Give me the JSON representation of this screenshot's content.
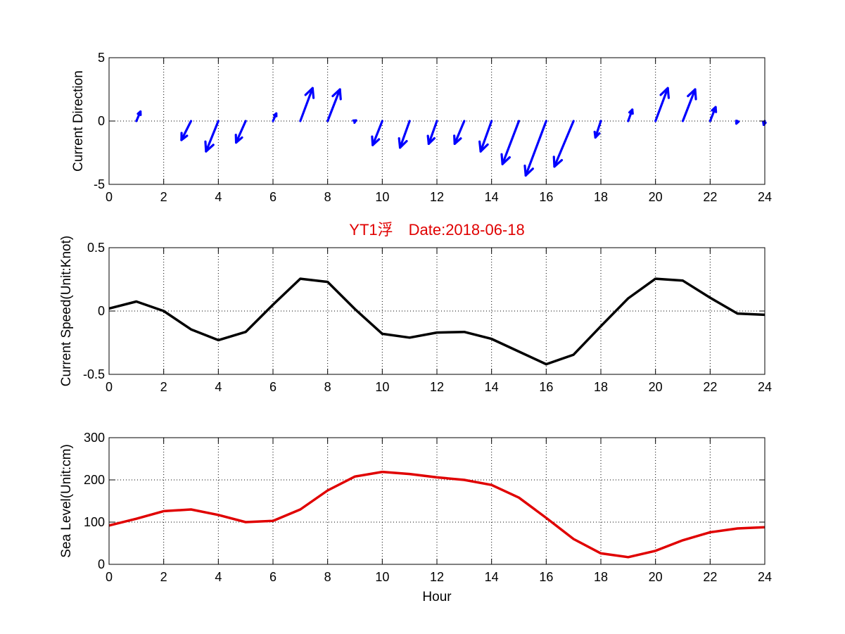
{
  "chart_data": [
    {
      "type": "quiver",
      "ylabel": "Current Direction",
      "xlim": [
        0,
        24
      ],
      "ylim": [
        -5,
        5
      ],
      "xticks": [
        0,
        2,
        4,
        6,
        8,
        10,
        12,
        14,
        16,
        18,
        20,
        22,
        24
      ],
      "yticks": [
        -5,
        0,
        5
      ],
      "grid": true,
      "color": "#0000ff",
      "x": [
        1,
        2,
        3,
        4,
        5,
        6,
        7,
        8,
        9,
        10,
        11,
        12,
        13,
        14,
        15,
        16,
        17,
        18,
        19,
        20,
        21,
        22,
        23,
        24
      ],
      "u": [
        0.15,
        0,
        -0.35,
        -0.45,
        -0.35,
        0.12,
        0.45,
        0.45,
        0.04,
        -0.35,
        -0.35,
        -0.3,
        -0.35,
        -0.4,
        -0.6,
        -0.75,
        -0.7,
        -0.2,
        0.15,
        0.45,
        0.45,
        0.2,
        -0.04,
        -0.04
      ],
      "v": [
        0.75,
        0,
        -1.5,
        -2.4,
        -1.7,
        0.6,
        2.6,
        2.5,
        0.05,
        -1.9,
        -2.1,
        -1.8,
        -1.8,
        -2.4,
        -3.4,
        -4.3,
        -3.6,
        -1.3,
        0.9,
        2.6,
        2.5,
        1.1,
        -0.2,
        -0.3
      ]
    },
    {
      "type": "line",
      "title": "YT1浮　Date:2018-06-18",
      "ylabel": "Current Speed(Unit:Knot)",
      "xlim": [
        0,
        24
      ],
      "ylim": [
        -0.5,
        0.5
      ],
      "xticks": [
        0,
        2,
        4,
        6,
        8,
        10,
        12,
        14,
        16,
        18,
        20,
        22,
        24
      ],
      "yticks": [
        -0.5,
        0,
        0.5
      ],
      "ytick_labels": [
        "-0.5",
        "0",
        "0.5"
      ],
      "grid": true,
      "color": "#000000",
      "x": [
        0,
        1,
        2,
        3,
        4,
        5,
        6,
        7,
        8,
        9,
        10,
        11,
        12,
        13,
        14,
        15,
        16,
        17,
        18,
        19,
        20,
        21,
        22,
        23,
        24
      ],
      "y": [
        0.02,
        0.075,
        0.0,
        -0.145,
        -0.23,
        -0.165,
        0.05,
        0.255,
        0.23,
        0.015,
        -0.18,
        -0.21,
        -0.17,
        -0.165,
        -0.22,
        -0.32,
        -0.42,
        -0.345,
        -0.12,
        0.1,
        0.255,
        0.24,
        0.105,
        -0.02,
        -0.03
      ]
    },
    {
      "type": "line",
      "ylabel": "Sea Level(Unit:cm)",
      "xlabel": "Hour",
      "xlim": [
        0,
        24
      ],
      "ylim": [
        0,
        300
      ],
      "xticks": [
        0,
        2,
        4,
        6,
        8,
        10,
        12,
        14,
        16,
        18,
        20,
        22,
        24
      ],
      "yticks": [
        0,
        100,
        200,
        300
      ],
      "grid": true,
      "color": "#e00000",
      "x": [
        0,
        1,
        2,
        3,
        4,
        5,
        6,
        7,
        8,
        9,
        10,
        11,
        12,
        13,
        14,
        15,
        16,
        17,
        18,
        19,
        20,
        21,
        22,
        23,
        24
      ],
      "y": [
        92,
        108,
        126,
        130,
        117,
        100,
        103,
        130,
        175,
        208,
        219,
        214,
        206,
        200,
        188,
        158,
        110,
        60,
        26,
        17,
        32,
        57,
        76,
        85,
        88
      ]
    }
  ]
}
